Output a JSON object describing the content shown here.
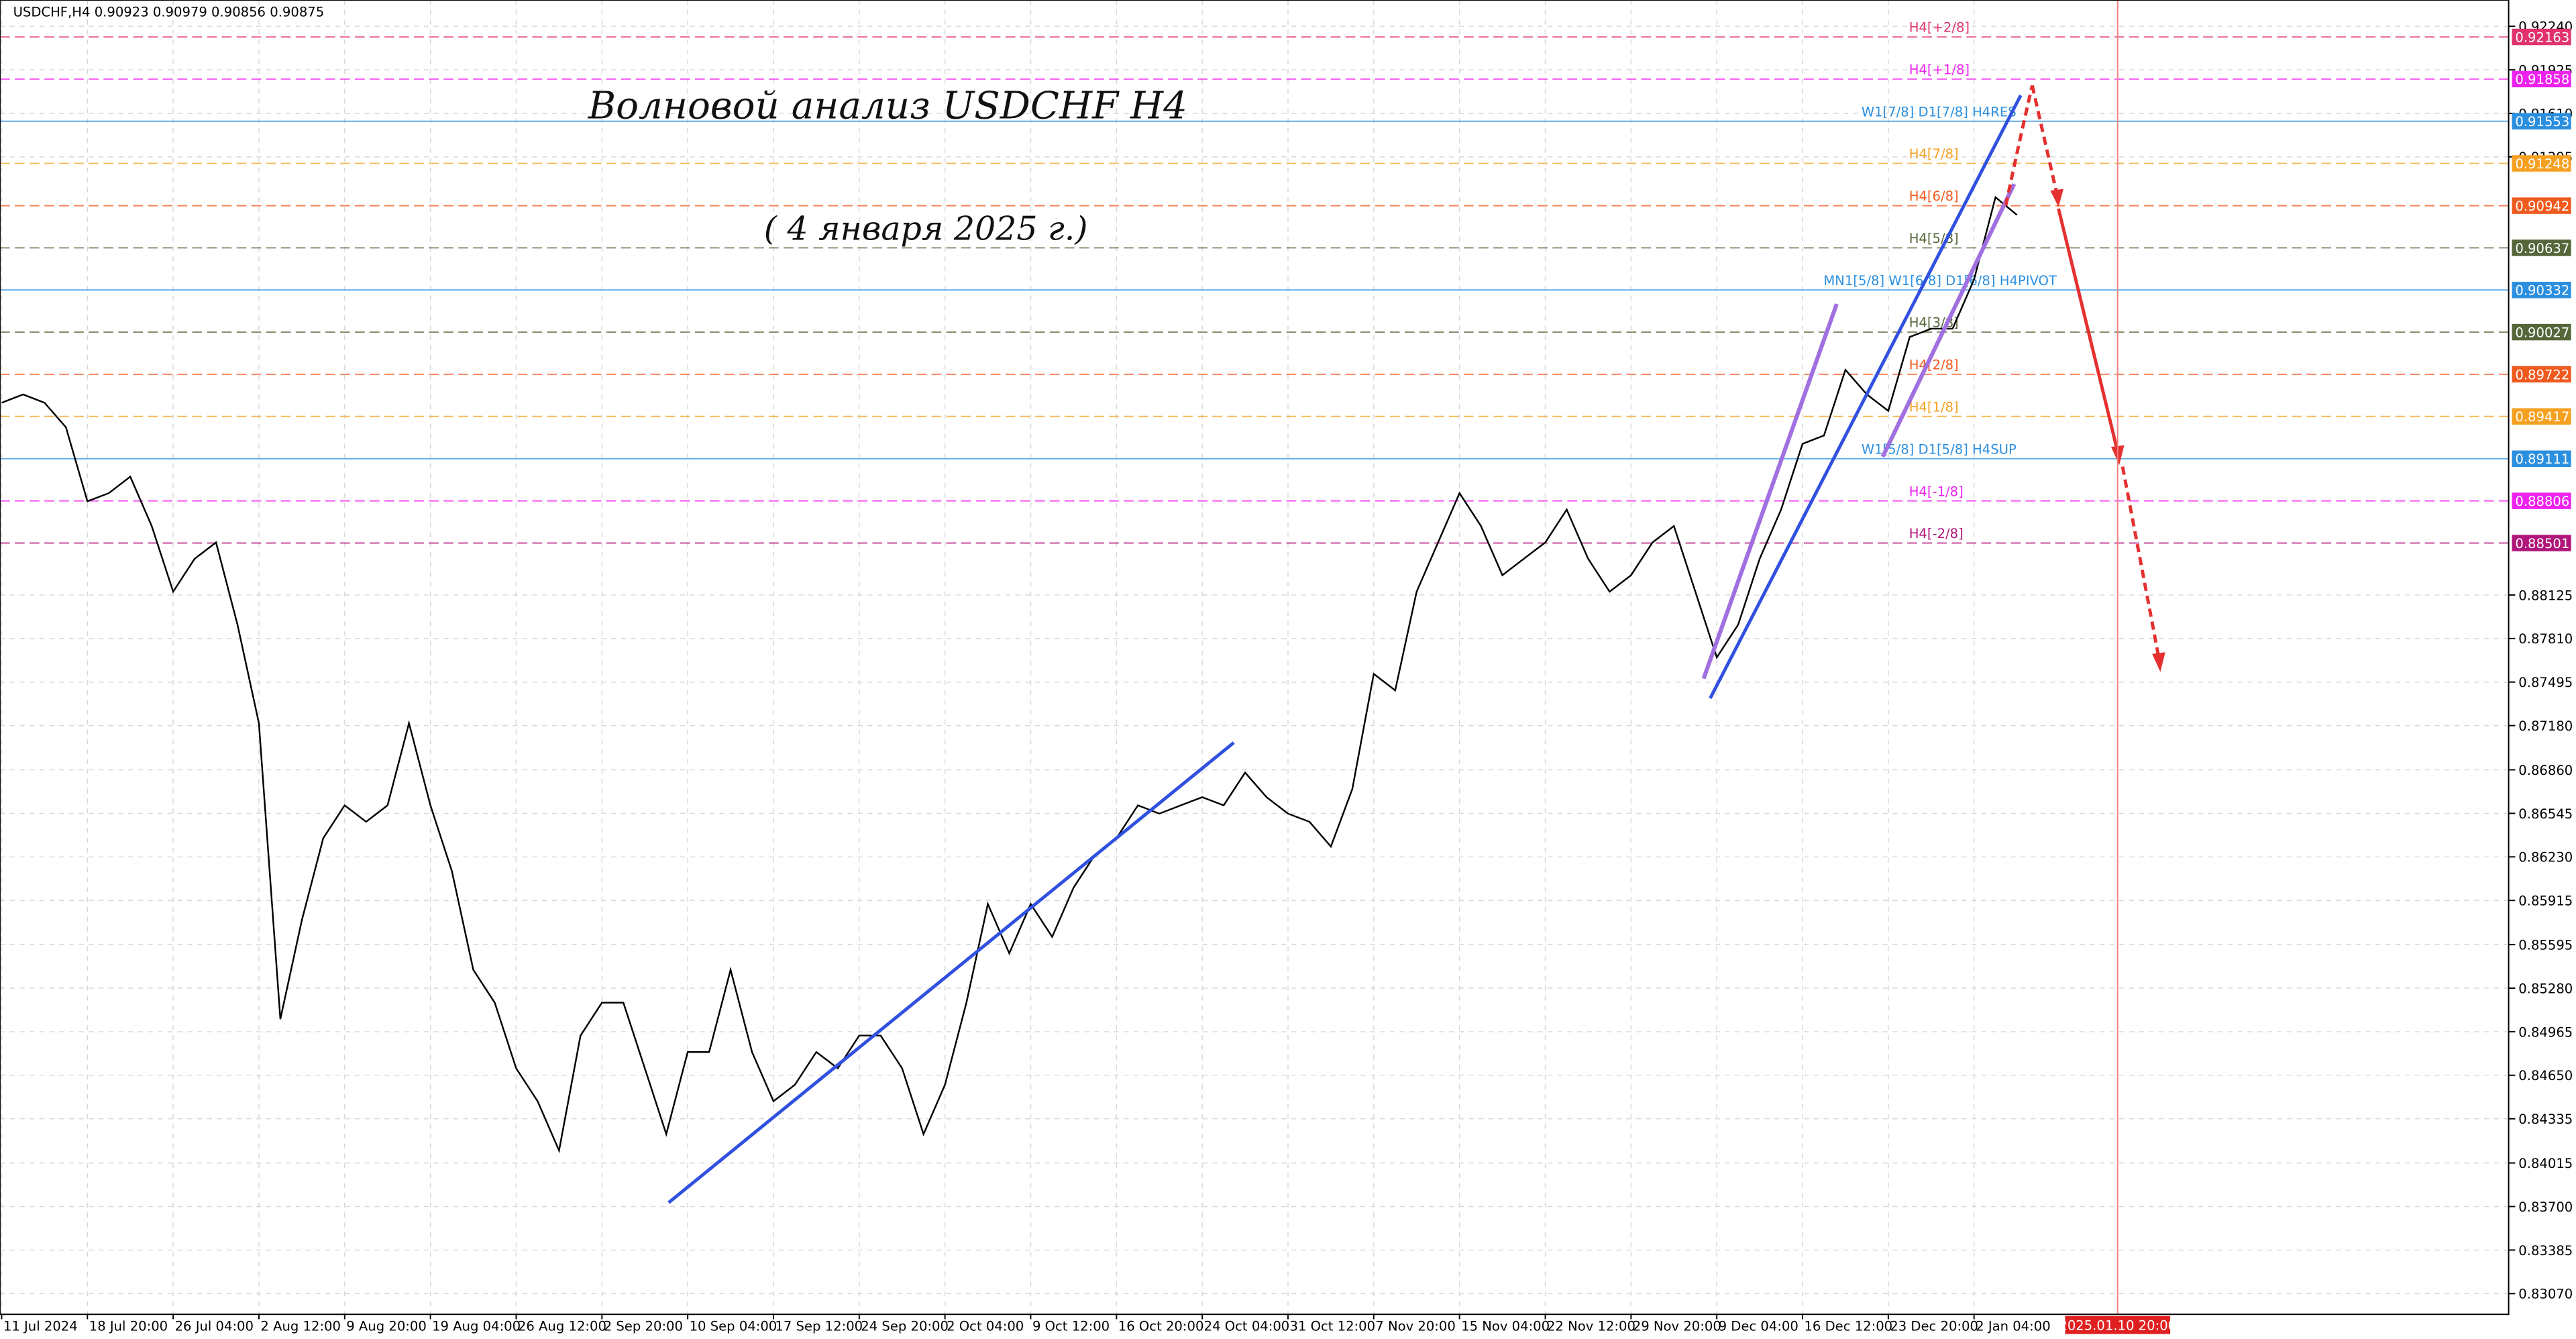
{
  "chart_data": {
    "type": "line",
    "header": "USDCHF,H4  0.90923 0.90979 0.90856 0.90875",
    "annotations": [
      "Волновой анализ USDCHF H4",
      "( 4 января 2025 г.)"
    ],
    "cursor_label": "2025.01.10 20:00",
    "grid": true,
    "categories": [
      "11 Jul 2024",
      null,
      null,
      null,
      "18 Jul 20:00",
      null,
      null,
      null,
      "26 Jul 04:00",
      null,
      null,
      null,
      "2 Aug 12:00",
      null,
      null,
      null,
      "9 Aug 20:00",
      null,
      null,
      null,
      "19 Aug 04:00",
      null,
      null,
      null,
      "26 Aug 12:00",
      null,
      null,
      null,
      "2 Sep 20:00",
      null,
      null,
      null,
      "10 Sep 04:00",
      null,
      null,
      null,
      "17 Sep 12:00",
      null,
      null,
      null,
      "24 Sep 20:00",
      null,
      null,
      null,
      "2 Oct 04:00",
      null,
      null,
      null,
      "9 Oct 12:00",
      null,
      null,
      null,
      "16 Oct 20:00",
      null,
      null,
      null,
      "24 Oct 04:00",
      null,
      null,
      null,
      "31 Oct 12:00",
      null,
      null,
      null,
      "7 Nov 20:00",
      null,
      null,
      null,
      "15 Nov 04:00",
      null,
      null,
      null,
      "22 Nov 12:00",
      null,
      null,
      null,
      "29 Nov 20:00",
      null,
      null,
      null,
      "9 Dec 04:00",
      null,
      null,
      null,
      "16 Dec 12:00",
      null,
      null,
      null,
      "23 Dec 20:00",
      null,
      null,
      null,
      "2 Jan 04:00",
      null,
      null
    ],
    "series": [
      {
        "name": "USDCHF",
        "color": "#000000",
        "values": [
          0.89516,
          0.89576,
          0.89516,
          0.89338,
          0.88803,
          0.88862,
          0.88981,
          0.88624,
          0.88149,
          0.88387,
          0.88505,
          0.87911,
          0.87197,
          0.85056,
          0.8577,
          0.86365,
          0.86603,
          0.86484,
          0.86603,
          0.87197,
          0.86603,
          0.86127,
          0.85413,
          0.85175,
          0.847,
          0.84462,
          0.84105,
          0.84937,
          0.85175,
          0.85175,
          0.847,
          0.84224,
          0.84818,
          0.84818,
          0.85413,
          0.84818,
          0.84462,
          0.84581,
          0.84818,
          0.847,
          0.84937,
          0.84937,
          0.847,
          0.84224,
          0.84581,
          0.85175,
          0.85889,
          0.85532,
          0.85889,
          0.85651,
          0.86008,
          0.86246,
          0.86365,
          0.86603,
          0.86543,
          0.86603,
          0.86662,
          0.86603,
          0.8684,
          0.86662,
          0.86543,
          0.86484,
          0.86305,
          0.86721,
          0.87554,
          0.87435,
          0.88149,
          0.88505,
          0.88862,
          0.88624,
          0.88268,
          0.88387,
          0.88505,
          0.88743,
          0.88387,
          0.88149,
          0.88268,
          0.88505,
          0.88624,
          0.88149,
          0.87673,
          0.87911,
          0.88387,
          0.88743,
          0.89219,
          0.89279,
          0.89754,
          0.89576,
          0.89457,
          0.89992,
          0.90052,
          0.90052,
          0.90408,
          0.91003,
          0.90875
        ]
      }
    ],
    "ylim": [
      0.8292,
      0.9243
    ],
    "yticks": [
      {
        "value": 0.9224,
        "label": "0.92240"
      },
      {
        "value": 0.91925,
        "label": "0.91925"
      },
      {
        "value": 0.9161,
        "label": "0.91610"
      },
      {
        "value": 0.91295,
        "label": "0.91295"
      },
      {
        "value": 0.88125,
        "label": "0.88125"
      },
      {
        "value": 0.8781,
        "label": "0.87810"
      },
      {
        "value": 0.87495,
        "label": "0.87495"
      },
      {
        "value": 0.8718,
        "label": "0.87180"
      },
      {
        "value": 0.8686,
        "label": "0.86860"
      },
      {
        "value": 0.86545,
        "label": "0.86545"
      },
      {
        "value": 0.8623,
        "label": "0.86230"
      },
      {
        "value": 0.85915,
        "label": "0.85915"
      },
      {
        "value": 0.85595,
        "label": "0.85595"
      },
      {
        "value": 0.8528,
        "label": "0.85280"
      },
      {
        "value": 0.84965,
        "label": "0.84965"
      },
      {
        "value": 0.8465,
        "label": "0.84650"
      },
      {
        "value": 0.84335,
        "label": "0.84335"
      },
      {
        "value": 0.84015,
        "label": "0.84015"
      },
      {
        "value": 0.837,
        "label": "0.83700"
      },
      {
        "value": 0.83385,
        "label": "0.83385"
      },
      {
        "value": 0.8307,
        "label": "0.83070"
      }
    ],
    "levels": [
      {
        "price": 0.92163,
        "label": "H4[+2/8]",
        "color": "#e0336b"
      },
      {
        "price": 0.91858,
        "label": "H4[+1/8]",
        "color": "#ee22ee"
      },
      {
        "price": 0.91553,
        "label": "W1[7/8] D1[7/8] H4RES",
        "color": "#2b8fe0"
      },
      {
        "price": 0.91248,
        "label": "H4[7/8]",
        "color": "#f5a020"
      },
      {
        "price": 0.90942,
        "label": "H4[6/8]",
        "color": "#f05a1e"
      },
      {
        "price": 0.90637,
        "label": "H4[5/8]",
        "color": "#55663a"
      },
      {
        "price": 0.90332,
        "label": "MN1[5/8] W1[6/8] D1[6/8] H4PIVOT",
        "color": "#2b8fe0"
      },
      {
        "price": 0.90027,
        "label": "H4[3/8]",
        "color": "#55663a"
      },
      {
        "price": 0.89722,
        "label": "H4[2/8]",
        "color": "#f05a1e"
      },
      {
        "price": 0.89417,
        "label": "H4[1/8]",
        "color": "#f5a020"
      },
      {
        "price": 0.89111,
        "label": "W1[5/8] D1[5/8] H4SUP",
        "color": "#2b8fe0"
      },
      {
        "price": 0.88806,
        "label": "H4[-1/8]",
        "color": "#ee22ee"
      },
      {
        "price": 0.88501,
        "label": "H4[-2/8]",
        "color": "#b0157a"
      }
    ]
  }
}
